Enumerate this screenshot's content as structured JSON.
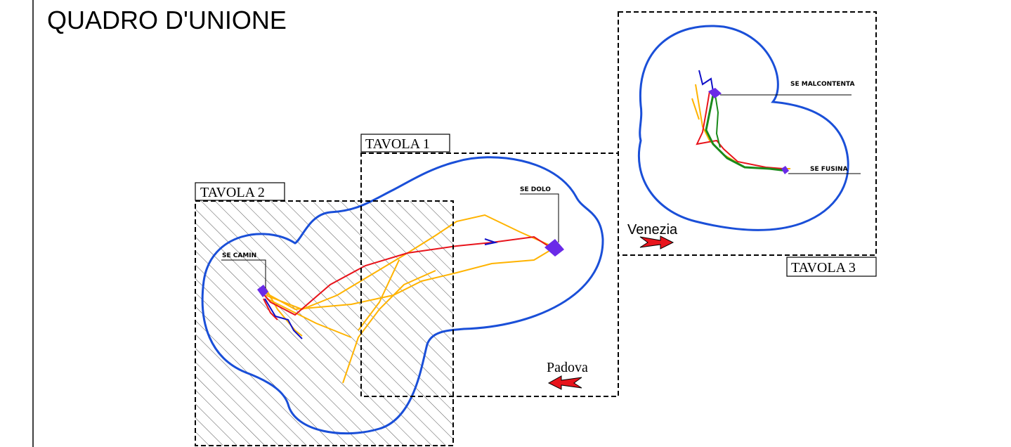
{
  "title": "QUADRO D'UNIONE",
  "sheets": {
    "tavola1": "TAVOLA 1",
    "tavola2": "TAVOLA 2",
    "tavola3": "TAVOLA 3"
  },
  "substations": {
    "dolo": "SE DOLO",
    "camin": "SE CAMIN",
    "malcontenta": "SE MALCONTENTA",
    "fusina": "SE FUSINA"
  },
  "directions": {
    "venezia": "Venezia",
    "padova": "Padova"
  },
  "colors": {
    "buffer_outline": "#1a4fd8",
    "route_red": "#e8141c",
    "route_orange": "#ffb300",
    "route_green": "#1a8a1a",
    "route_blue": "#1010c8",
    "substation_marker": "#6a2ae8",
    "arrow_fill": "#e8141c",
    "frame": "#000000",
    "hatch": "#555555"
  }
}
